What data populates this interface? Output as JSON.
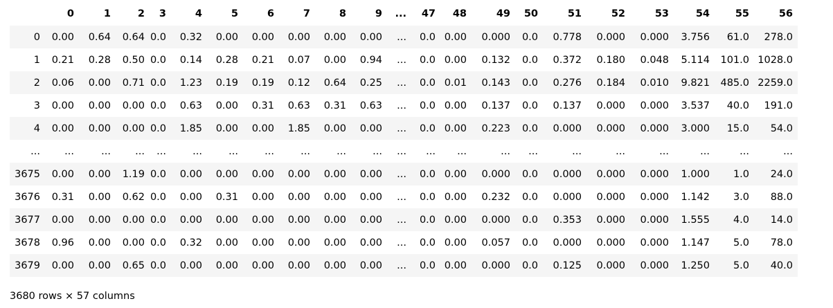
{
  "table": {
    "index_header": "",
    "columns": [
      "0",
      "1",
      "2",
      "3",
      "4",
      "5",
      "6",
      "7",
      "8",
      "9",
      "...",
      "47",
      "48",
      "49",
      "50",
      "51",
      "52",
      "53",
      "54",
      "55",
      "56"
    ],
    "rows": [
      {
        "index": "0",
        "cells": [
          "0.00",
          "0.64",
          "0.64",
          "0.0",
          "0.32",
          "0.00",
          "0.00",
          "0.00",
          "0.00",
          "0.00",
          "...",
          "0.0",
          "0.00",
          "0.000",
          "0.0",
          "0.778",
          "0.000",
          "0.000",
          "3.756",
          "61.0",
          "278.0"
        ]
      },
      {
        "index": "1",
        "cells": [
          "0.21",
          "0.28",
          "0.50",
          "0.0",
          "0.14",
          "0.28",
          "0.21",
          "0.07",
          "0.00",
          "0.94",
          "...",
          "0.0",
          "0.00",
          "0.132",
          "0.0",
          "0.372",
          "0.180",
          "0.048",
          "5.114",
          "101.0",
          "1028.0"
        ]
      },
      {
        "index": "2",
        "cells": [
          "0.06",
          "0.00",
          "0.71",
          "0.0",
          "1.23",
          "0.19",
          "0.19",
          "0.12",
          "0.64",
          "0.25",
          "...",
          "0.0",
          "0.01",
          "0.143",
          "0.0",
          "0.276",
          "0.184",
          "0.010",
          "9.821",
          "485.0",
          "2259.0"
        ]
      },
      {
        "index": "3",
        "cells": [
          "0.00",
          "0.00",
          "0.00",
          "0.0",
          "0.63",
          "0.00",
          "0.31",
          "0.63",
          "0.31",
          "0.63",
          "...",
          "0.0",
          "0.00",
          "0.137",
          "0.0",
          "0.137",
          "0.000",
          "0.000",
          "3.537",
          "40.0",
          "191.0"
        ]
      },
      {
        "index": "4",
        "cells": [
          "0.00",
          "0.00",
          "0.00",
          "0.0",
          "1.85",
          "0.00",
          "0.00",
          "1.85",
          "0.00",
          "0.00",
          "...",
          "0.0",
          "0.00",
          "0.223",
          "0.0",
          "0.000",
          "0.000",
          "0.000",
          "3.000",
          "15.0",
          "54.0"
        ]
      },
      {
        "index": "...",
        "cells": [
          "...",
          "...",
          "...",
          "...",
          "...",
          "...",
          "...",
          "...",
          "...",
          "...",
          "...",
          "...",
          "...",
          "...",
          "...",
          "...",
          "...",
          "...",
          "...",
          "...",
          "..."
        ]
      },
      {
        "index": "3675",
        "cells": [
          "0.00",
          "0.00",
          "1.19",
          "0.0",
          "0.00",
          "0.00",
          "0.00",
          "0.00",
          "0.00",
          "0.00",
          "...",
          "0.0",
          "0.00",
          "0.000",
          "0.0",
          "0.000",
          "0.000",
          "0.000",
          "1.000",
          "1.0",
          "24.0"
        ]
      },
      {
        "index": "3676",
        "cells": [
          "0.31",
          "0.00",
          "0.62",
          "0.0",
          "0.00",
          "0.31",
          "0.00",
          "0.00",
          "0.00",
          "0.00",
          "...",
          "0.0",
          "0.00",
          "0.232",
          "0.0",
          "0.000",
          "0.000",
          "0.000",
          "1.142",
          "3.0",
          "88.0"
        ]
      },
      {
        "index": "3677",
        "cells": [
          "0.00",
          "0.00",
          "0.00",
          "0.0",
          "0.00",
          "0.00",
          "0.00",
          "0.00",
          "0.00",
          "0.00",
          "...",
          "0.0",
          "0.00",
          "0.000",
          "0.0",
          "0.353",
          "0.000",
          "0.000",
          "1.555",
          "4.0",
          "14.0"
        ]
      },
      {
        "index": "3678",
        "cells": [
          "0.96",
          "0.00",
          "0.00",
          "0.0",
          "0.32",
          "0.00",
          "0.00",
          "0.00",
          "0.00",
          "0.00",
          "...",
          "0.0",
          "0.00",
          "0.057",
          "0.0",
          "0.000",
          "0.000",
          "0.000",
          "1.147",
          "5.0",
          "78.0"
        ]
      },
      {
        "index": "3679",
        "cells": [
          "0.00",
          "0.00",
          "0.65",
          "0.0",
          "0.00",
          "0.00",
          "0.00",
          "0.00",
          "0.00",
          "0.00",
          "...",
          "0.0",
          "0.00",
          "0.000",
          "0.0",
          "0.125",
          "0.000",
          "0.000",
          "1.250",
          "5.0",
          "40.0"
        ]
      }
    ]
  },
  "footer": {
    "shape_text": "3680 rows × 57 columns"
  },
  "colors": {
    "row_stripe": "#f5f5f5",
    "row_plain": "#ffffff",
    "text": "#000000"
  }
}
